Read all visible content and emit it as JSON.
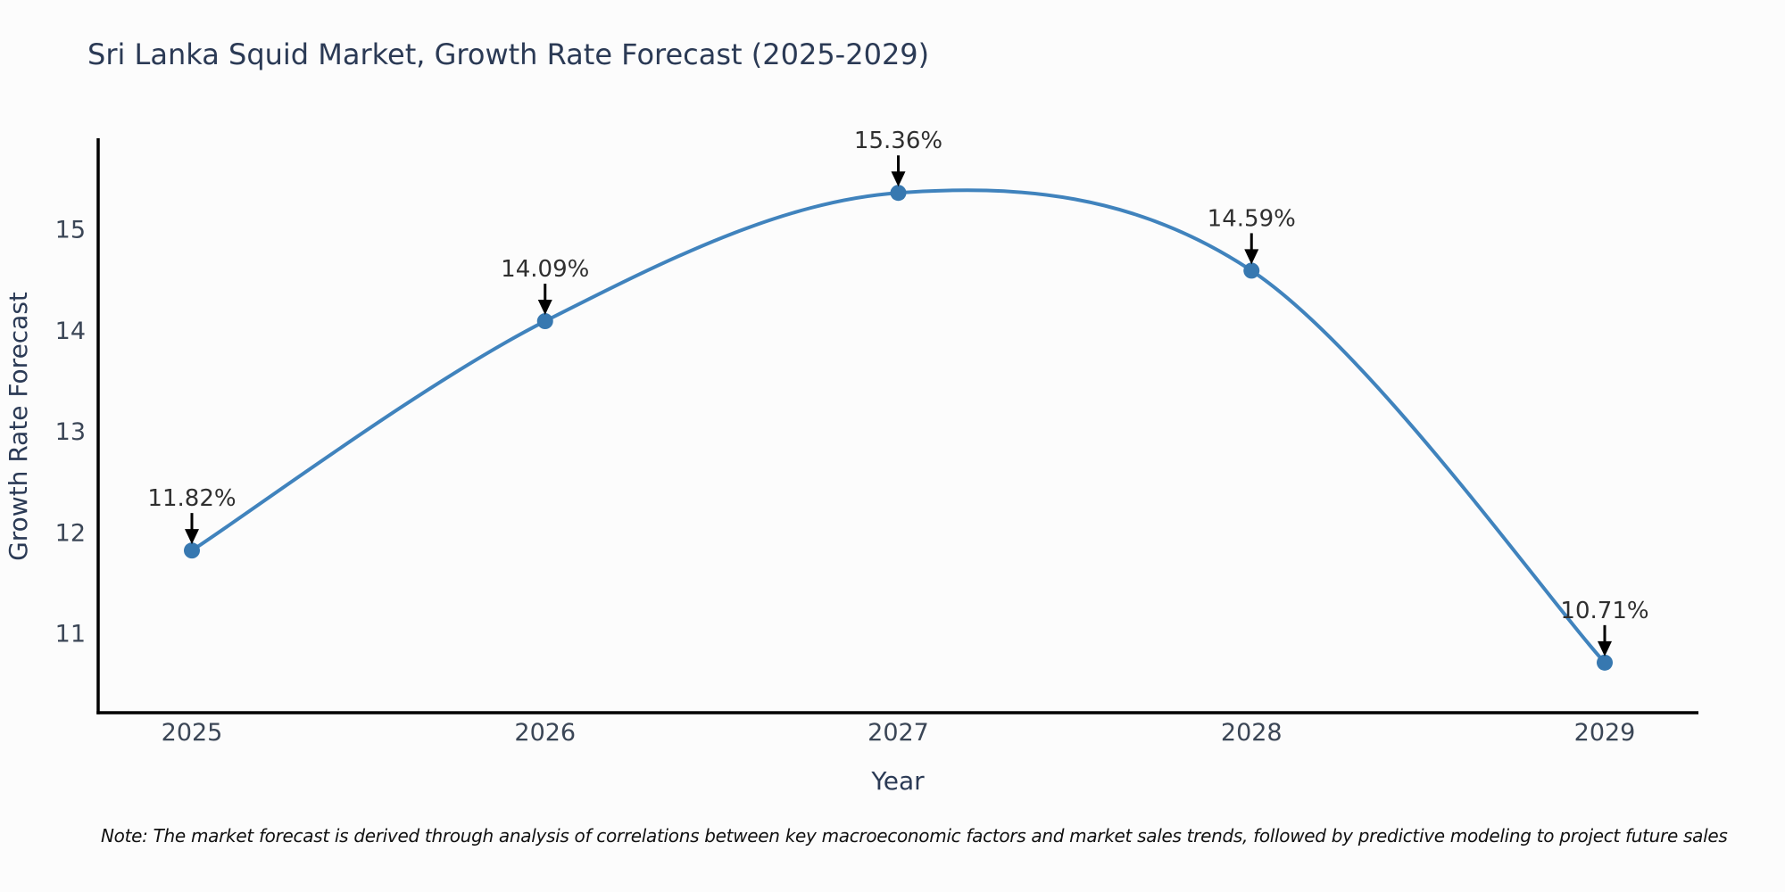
{
  "chart_data": {
    "type": "line",
    "title": "Sri Lanka Squid Market, Growth Rate Forecast (2025-2029)",
    "xlabel": "Year",
    "ylabel": "Growth Rate Forecast",
    "categories": [
      "2025",
      "2026",
      "2027",
      "2028",
      "2029"
    ],
    "values": [
      11.82,
      14.09,
      15.36,
      14.59,
      10.71
    ],
    "point_labels": [
      "11.82%",
      "14.09%",
      "15.36%",
      "14.59%",
      "10.71%"
    ],
    "yticks": [
      "11",
      "12",
      "13",
      "14",
      "15"
    ],
    "ylim": [
      10.2,
      15.9
    ],
    "line_shape": "spline",
    "grid": false,
    "legend": false,
    "note": "Note: The market forecast is derived through analysis of correlations between key macroeconomic factors and market sales trends, followed by predictive modeling to project future sales",
    "colors": {
      "line": "#4083bd",
      "marker": "#3778b0",
      "axis": "#000000",
      "title": "#2b3a55",
      "tick": "#3b4656",
      "annotation": "#2f2f2f",
      "arrow": "#000000",
      "background": "#fcfcfc"
    }
  }
}
